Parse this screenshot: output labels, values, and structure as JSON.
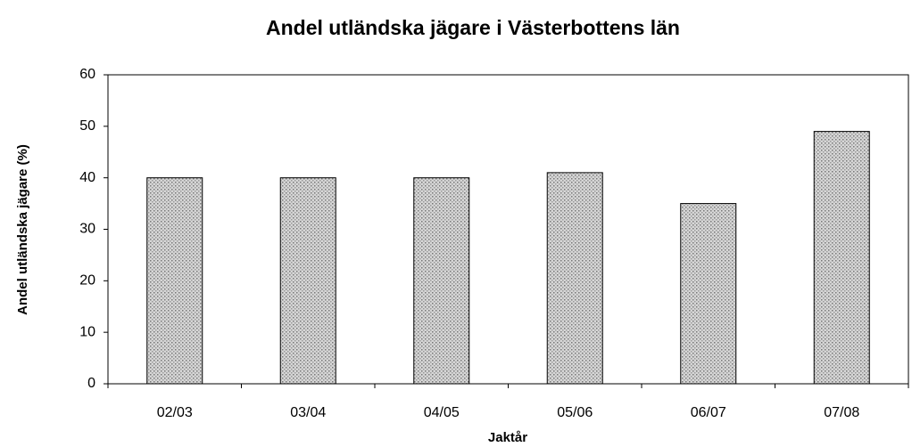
{
  "chart_data": {
    "type": "bar",
    "title": "Andel utländska jägare i Västerbottens län",
    "x_label": "Jaktår",
    "y_label": "Andel utländska jägare (%)",
    "categories": [
      "02/03",
      "03/04",
      "04/05",
      "05/06",
      "06/07",
      "07/08"
    ],
    "values": [
      40,
      40,
      40,
      41,
      35,
      49
    ],
    "color": "#cfcfcf",
    "ylim": [
      0,
      60
    ],
    "yticks": [
      0,
      10,
      20,
      30,
      40,
      50,
      60
    ],
    "grid": false
  }
}
